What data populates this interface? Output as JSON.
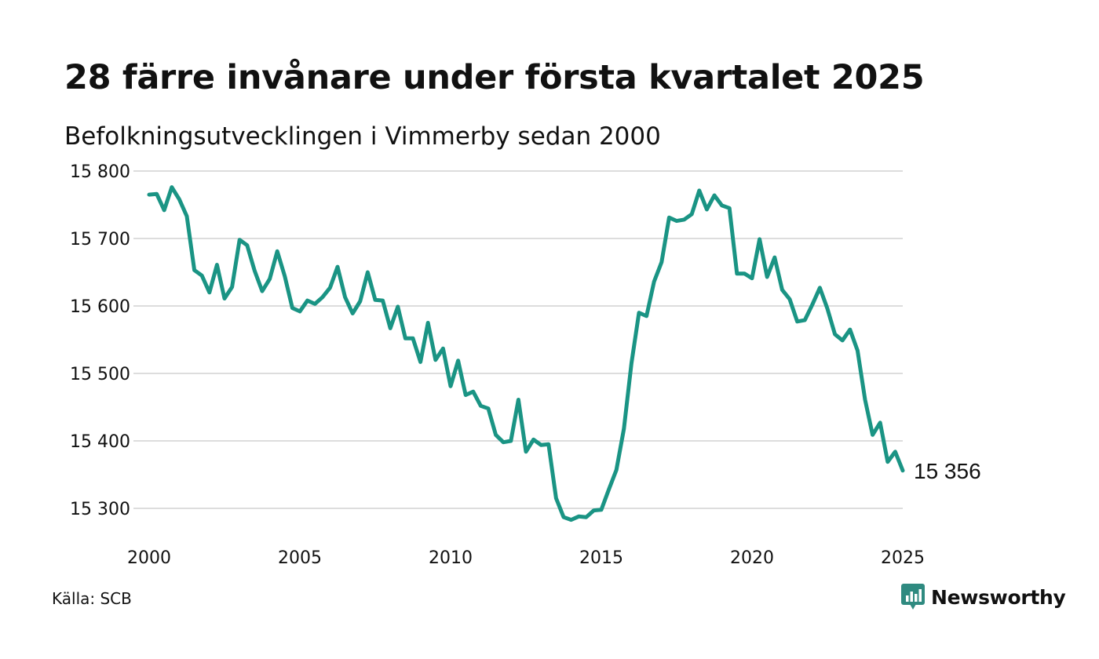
{
  "header": {
    "title": "28 färre invånare under första kvartalet 2025",
    "subtitle": "Befolkningsutvecklingen i Vimmerby sedan 2000"
  },
  "footer": {
    "source": "Källa: SCB",
    "brand": "Newsworthy"
  },
  "colors": {
    "line": "#1a9484",
    "grid": "#dddddd",
    "brand": "#2f8a80"
  },
  "icons": {
    "brand_logo": "bar-chart-speech-bubble-icon"
  },
  "chart_data": {
    "type": "line",
    "title": "28 färre invånare under första kvartalet 2025",
    "subtitle": "Befolkningsutvecklingen i Vimmerby sedan 2000",
    "xlabel": "",
    "ylabel": "",
    "xlim": [
      2000,
      2025
    ],
    "ylim": [
      15300,
      15800
    ],
    "x_ticks": [
      2000,
      2005,
      2010,
      2015,
      2020,
      2025
    ],
    "x_tick_labels": [
      "2000",
      "2005",
      "2010",
      "2015",
      "2020",
      "2025"
    ],
    "y_ticks": [
      15300,
      15400,
      15500,
      15600,
      15700,
      15800
    ],
    "y_tick_labels": [
      "15 300",
      "15 400",
      "15 500",
      "15 600",
      "15 700",
      "15 800"
    ],
    "grid": "horizontal",
    "legend": "none",
    "end_label": "15 356",
    "series": [
      {
        "x": [
          2000.0,
          2000.25,
          2000.5,
          2000.75,
          2001.0,
          2001.25,
          2001.5,
          2001.75,
          2002.0,
          2002.25,
          2002.5,
          2002.75,
          2003.0,
          2003.25,
          2003.5,
          2003.75,
          2004.0,
          2004.25,
          2004.5,
          2004.75,
          2005.0,
          2005.25,
          2005.5,
          2005.75,
          2006.0,
          2006.25,
          2006.5,
          2006.75,
          2007.0,
          2007.25,
          2007.5,
          2007.75,
          2008.0,
          2008.25,
          2008.5,
          2008.75,
          2009.0,
          2009.25,
          2009.5,
          2009.75,
          2010.0,
          2010.25,
          2010.5,
          2010.75,
          2011.0,
          2011.25,
          2011.5,
          2011.75,
          2012.0,
          2012.25,
          2012.5,
          2012.75,
          2013.0,
          2013.25,
          2013.5,
          2013.75,
          2014.0,
          2014.25,
          2014.5,
          2014.75,
          2015.0,
          2015.25,
          2015.5,
          2015.75,
          2016.0,
          2016.25,
          2016.5,
          2016.75,
          2017.0,
          2017.25,
          2017.5,
          2017.75,
          2018.0,
          2018.25,
          2018.5,
          2018.75,
          2019.0,
          2019.25,
          2019.5,
          2019.75,
          2020.0,
          2020.25,
          2020.5,
          2020.75,
          2021.0,
          2021.25,
          2021.5,
          2021.75,
          2022.0,
          2022.25,
          2022.5,
          2022.75,
          2023.0,
          2023.25,
          2023.5,
          2023.75,
          2024.0,
          2024.25,
          2024.5,
          2024.75,
          2025.0
        ],
        "y": [
          15765,
          15766,
          15742,
          15776,
          15758,
          15733,
          15653,
          15645,
          15620,
          15661,
          15611,
          15628,
          15698,
          15690,
          15652,
          15622,
          15640,
          15681,
          15644,
          15597,
          15592,
          15608,
          15603,
          15613,
          15627,
          15658,
          15613,
          15589,
          15607,
          15650,
          15609,
          15608,
          15567,
          15599,
          15552,
          15552,
          15517,
          15575,
          15520,
          15537,
          15481,
          15519,
          15468,
          15473,
          15452,
          15448,
          15409,
          15398,
          15400,
          15461,
          15384,
          15402,
          15394,
          15395,
          15315,
          15287,
          15283,
          15288,
          15287,
          15297,
          15298,
          15328,
          15357,
          15418,
          15515,
          15590,
          15585,
          15636,
          15665,
          15731,
          15726,
          15728,
          15736,
          15771,
          15743,
          15764,
          15749,
          15745,
          15648,
          15648,
          15641,
          15699,
          15643,
          15672,
          15624,
          15610,
          15577,
          15579,
          15602,
          15627,
          15596,
          15558,
          15549,
          15565,
          15534,
          15461,
          15409,
          15427,
          15369,
          15384,
          15356
        ]
      }
    ]
  }
}
